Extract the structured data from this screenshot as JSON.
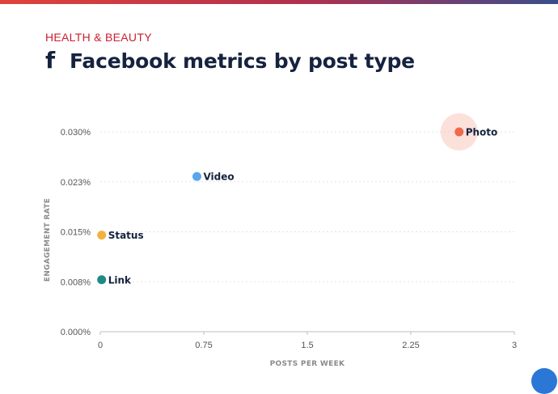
{
  "header": {
    "category": "HEALTH & BEAUTY",
    "icon": "facebook-f-icon",
    "title": "Facebook metrics by post type"
  },
  "colors": {
    "brand_red": "#c8202f",
    "title_navy": "#15233f",
    "grid": "#e3e3e3",
    "axis_text": "#555555"
  },
  "chart_data": {
    "type": "scatter",
    "title": "Facebook metrics by post type",
    "xlabel": "POSTS PER WEEK",
    "ylabel": "ENGAGEMENT RATE",
    "xlim": [
      0,
      3
    ],
    "ylim": [
      0,
      0.03
    ],
    "x_ticks": [
      0,
      0.75,
      1.5,
      2.25,
      3
    ],
    "x_tick_labels": [
      "0",
      "0.75",
      "1.5",
      "2.25",
      "3"
    ],
    "y_ticks": [
      0,
      0.0075,
      0.015,
      0.0225,
      0.03
    ],
    "y_tick_labels": [
      "0.000%",
      "0.008%",
      "0.015%",
      "0.023%",
      "0.030%"
    ],
    "grid": true,
    "points": [
      {
        "label": "Photo",
        "x": 2.6,
        "y": 0.03,
        "color": "#ee6a4a",
        "highlight": true
      },
      {
        "label": "Video",
        "x": 0.7,
        "y": 0.0233,
        "color": "#5aa6ee"
      },
      {
        "label": "Status",
        "x": 0.01,
        "y": 0.0145,
        "color": "#f2b23e"
      },
      {
        "label": "Link",
        "x": 0.01,
        "y": 0.0078,
        "color": "#1e8a8a"
      }
    ]
  }
}
